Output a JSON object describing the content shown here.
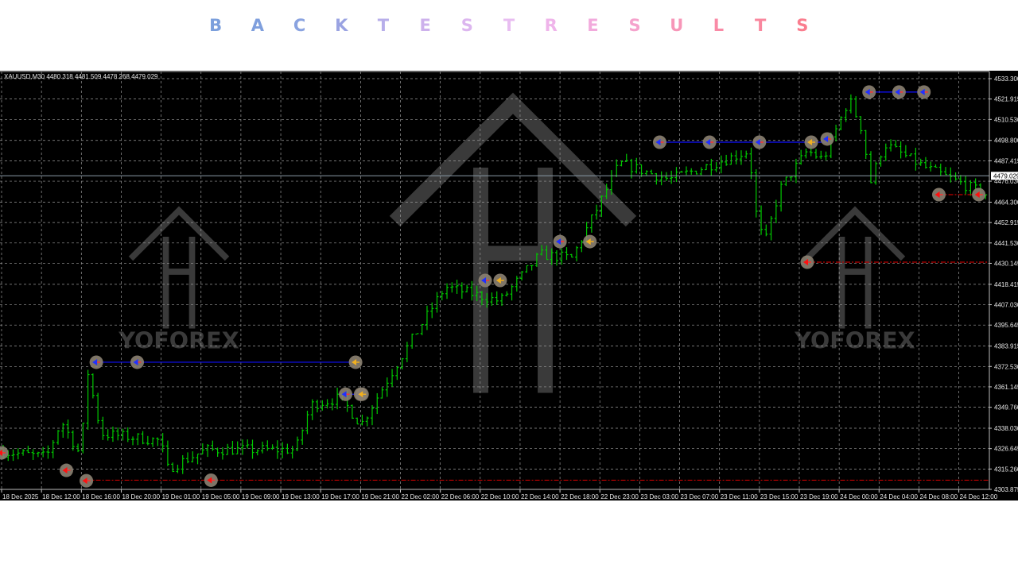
{
  "header": {
    "title": "BACKTESTRESULTS",
    "letter_colors": [
      "#7b9fdc",
      "#7f9fdd",
      "#8aa3e0",
      "#9aa3e2",
      "#b7aeea",
      "#cdb1ec",
      "#dcb6ef",
      "#e8bdf1",
      "#efb4ea",
      "#f2aadc",
      "#f5a2cc",
      "#f796b8",
      "#f98aa6",
      "#f9879e",
      "#fa7d8e"
    ]
  },
  "chart_data": {
    "type": "ohlc",
    "symbol_info": "XAUUSD,M30  4480.318 4481.509 4478.268 4479.029",
    "symbol": "XAUUSD",
    "timeframe": "M30",
    "last_bar": {
      "open": 4480.318,
      "high": 4481.509,
      "low": 4478.268,
      "close": 4479.029
    },
    "current_price": "4479.029",
    "ylim": [
      4303.875,
      4533.3
    ],
    "y_ticks": [
      "4533.300",
      "4521.915",
      "4510.530",
      "4498.800",
      "4487.415",
      "4476.030",
      "4464.300",
      "4452.915",
      "4441.530",
      "4430.145",
      "4418.415",
      "4407.030",
      "4395.645",
      "4383.915",
      "4372.530",
      "4361.145",
      "4349.760",
      "4338.030",
      "4326.645",
      "4315.260",
      "4303.875"
    ],
    "x_ticks": [
      "18 Dec 2025",
      "18 Dec 12:00",
      "18 Dec 16:00",
      "18 Dec 20:00",
      "19 Dec 01:00",
      "19 Dec 05:00",
      "19 Dec 09:00",
      "19 Dec 13:00",
      "19 Dec 17:00",
      "19 Dec 21:00",
      "22 Dec 02:00",
      "22 Dec 06:00",
      "22 Dec 10:00",
      "22 Dec 14:00",
      "22 Dec 18:00",
      "22 Dec 23:00",
      "23 Dec 03:00",
      "23 Dec 07:00",
      "23 Dec 11:00",
      "23 Dec 15:00",
      "23 Dec 19:00",
      "24 Dec 00:00",
      "24 Dec 04:00",
      "24 Dec 08:00",
      "24 Dec 12:00"
    ],
    "grid": true,
    "price_path": [
      {
        "t": "18 Dec 08:00",
        "p": 4325
      },
      {
        "t": "18 Dec 12:30",
        "p": 4322
      },
      {
        "t": "18 Dec 14:00",
        "p": 4342
      },
      {
        "t": "18 Dec 16:00",
        "p": 4322
      },
      {
        "t": "18 Dec 16:30",
        "p": 4373
      },
      {
        "t": "18 Dec 18:00",
        "p": 4335
      },
      {
        "t": "19 Dec 01:00",
        "p": 4331
      },
      {
        "t": "19 Dec 01:30",
        "p": 4315
      },
      {
        "t": "19 Dec 05:30",
        "p": 4326
      },
      {
        "t": "19 Dec 14:30",
        "p": 4326
      },
      {
        "t": "19 Dec 16:00",
        "p": 4351
      },
      {
        "t": "19 Dec 19:00",
        "p": 4355
      },
      {
        "t": "19 Dec 21:30",
        "p": 4340
      },
      {
        "t": "22 Dec 01:30",
        "p": 4377
      },
      {
        "t": "22 Dec 06:30",
        "p": 4417
      },
      {
        "t": "22 Dec 12:00",
        "p": 4409
      },
      {
        "t": "22 Dec 16:00",
        "p": 4435
      },
      {
        "t": "22 Dec 19:30",
        "p": 4433
      },
      {
        "t": "23 Dec 01:00",
        "p": 4486
      },
      {
        "t": "23 Dec 06:00",
        "p": 4477
      },
      {
        "t": "23 Dec 10:30",
        "p": 4486
      },
      {
        "t": "23 Dec 14:00",
        "p": 4493
      },
      {
        "t": "23 Dec 14:30",
        "p": 4462
      },
      {
        "t": "23 Dec 15:30",
        "p": 4440
      },
      {
        "t": "23 Dec 17:00",
        "p": 4471
      },
      {
        "t": "23 Dec 20:00",
        "p": 4493
      },
      {
        "t": "23 Dec 22:00",
        "p": 4488
      },
      {
        "t": "24 Dec 01:00",
        "p": 4522
      },
      {
        "t": "24 Dec 02:30",
        "p": 4502
      },
      {
        "t": "24 Dec 03:00",
        "p": 4473
      },
      {
        "t": "24 Dec 04:30",
        "p": 4497
      },
      {
        "t": "24 Dec 08:30",
        "p": 4484
      },
      {
        "t": "24 Dec 15:00",
        "p": 4468
      }
    ],
    "trade_levels": [
      {
        "p": 4374.9,
        "from": "18 Dec 17:30",
        "to": "19 Dec 20:30",
        "color": "#1010ff",
        "style": "solid"
      },
      {
        "p": 4357.0,
        "from": "19 Dec 19:30",
        "to": "19 Dec 23:00",
        "color": "#1010ff",
        "style": "solid"
      },
      {
        "p": 4497.8,
        "from": "23 Dec 05:00",
        "to": "23 Dec 22:30",
        "color": "#1010ff",
        "style": "solid"
      },
      {
        "p": 4525.8,
        "from": "24 Dec 03:00",
        "to": "24 Dec 08:30",
        "color": "#1010ff",
        "style": "solid"
      },
      {
        "p": 4309.0,
        "from": "18 Dec 16:30",
        "to": "24 Dec 15:00",
        "color": "#c00000",
        "style": "dash"
      },
      {
        "p": 4430.8,
        "from": "23 Dec 20:00",
        "to": "24 Dec 15:00",
        "color": "#c00000",
        "style": "dash"
      },
      {
        "p": 4468.5,
        "from": "24 Dec 10:00",
        "to": "24 Dec 14:00",
        "color": "#c00000",
        "style": "dash"
      }
    ],
    "trade_markers": [
      {
        "t": "18 Dec 08:00",
        "p": 4324.3,
        "kind": "red"
      },
      {
        "t": "18 Dec 14:30",
        "p": 4314.5,
        "kind": "red"
      },
      {
        "t": "18 Dec 16:30",
        "p": 4308.7,
        "kind": "red"
      },
      {
        "t": "18 Dec 17:30",
        "p": 4374.9,
        "kind": "blue"
      },
      {
        "t": "18 Dec 22:00",
        "p": 4374.9,
        "kind": "blue"
      },
      {
        "t": "19 Dec 06:00",
        "p": 4309.0,
        "kind": "red"
      },
      {
        "t": "19 Dec 20:30",
        "p": 4374.9,
        "kind": "yellow"
      },
      {
        "t": "19 Dec 19:30",
        "p": 4357.0,
        "kind": "blue"
      },
      {
        "t": "19 Dec 21:00",
        "p": 4357.0,
        "kind": "blue"
      },
      {
        "t": "19 Dec 23:00",
        "p": 4357.0,
        "kind": "yellow"
      },
      {
        "t": "22 Dec 10:30",
        "p": 4420.6,
        "kind": "blue"
      },
      {
        "t": "22 Dec 12:00",
        "p": 4420.6,
        "kind": "yellow"
      },
      {
        "t": "22 Dec 18:00",
        "p": 4442.3,
        "kind": "blue"
      },
      {
        "t": "22 Dec 21:45",
        "p": 4442.3,
        "kind": "yellow"
      },
      {
        "t": "23 Dec 05:00",
        "p": 4497.8,
        "kind": "blue"
      },
      {
        "t": "23 Dec 10:00",
        "p": 4497.8,
        "kind": "blue"
      },
      {
        "t": "23 Dec 15:00",
        "p": 4497.8,
        "kind": "blue"
      },
      {
        "t": "23 Dec 20:30",
        "p": 4497.8,
        "kind": "yellow"
      },
      {
        "t": "23 Dec 22:30",
        "p": 4499.6,
        "kind": "blue"
      },
      {
        "t": "24 Dec 03:00",
        "p": 4525.8,
        "kind": "blue"
      },
      {
        "t": "24 Dec 06:00",
        "p": 4525.8,
        "kind": "blue"
      },
      {
        "t": "24 Dec 08:30",
        "p": 4525.8,
        "kind": "blue"
      },
      {
        "t": "23 Dec 20:00",
        "p": 4430.8,
        "kind": "red"
      },
      {
        "t": "24 Dec 10:00",
        "p": 4468.5,
        "kind": "red"
      },
      {
        "t": "24 Dec 14:00",
        "p": 4468.5,
        "kind": "red"
      }
    ],
    "colors": {
      "background": "#000000",
      "bars": "#00c800",
      "grid": "#9a9a9a",
      "axis_text": "#e6e6e6",
      "current_price_line": "#8a9aa8"
    }
  },
  "watermark": {
    "text": "YOFOREX"
  }
}
